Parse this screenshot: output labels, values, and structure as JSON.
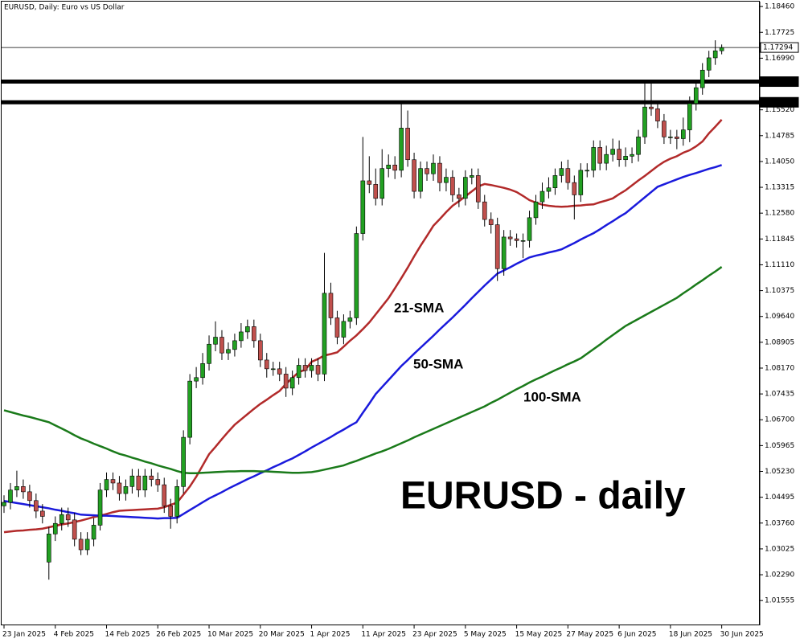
{
  "chart_data": {
    "type": "candlestick",
    "title": "EURUSD, Daily:  Euro vs US Dollar",
    "annotation": "EURUSD - daily",
    "up_color": "#22a022",
    "down_color": "#c0504d",
    "categories": [
      "23 Jan 2025",
      null,
      null,
      null,
      null,
      null,
      null,
      null,
      "4 Feb 2025",
      null,
      null,
      null,
      null,
      null,
      null,
      null,
      "14 Feb 2025",
      null,
      null,
      null,
      null,
      null,
      null,
      null,
      "26 Feb 2025",
      null,
      null,
      null,
      null,
      null,
      null,
      null,
      "10 Mar 2025",
      null,
      null,
      null,
      null,
      null,
      null,
      null,
      "20 Mar 2025",
      null,
      null,
      null,
      null,
      null,
      null,
      null,
      "1 Apr 2025",
      null,
      null,
      null,
      null,
      null,
      null,
      null,
      "11 Apr 2025",
      null,
      null,
      null,
      null,
      null,
      null,
      null,
      "23 Apr 2025",
      null,
      null,
      null,
      null,
      null,
      null,
      null,
      "5 May 2025",
      null,
      null,
      null,
      null,
      null,
      null,
      null,
      "15 May 2025",
      null,
      null,
      null,
      null,
      null,
      null,
      null,
      "27 May 2025",
      null,
      null,
      null,
      null,
      null,
      null,
      null,
      "6 Jun 2025",
      null,
      null,
      null,
      null,
      null,
      null,
      null,
      "18 Jun 2025",
      null,
      null,
      null,
      null,
      null,
      null,
      null,
      "30 Jun 2025"
    ],
    "open": [
      1.0425,
      1.0435,
      1.047,
      1.048,
      1.0465,
      1.044,
      1.041,
      1.0265,
      1.0345,
      1.0375,
      1.04,
      1.0385,
      1.033,
      1.03,
      1.033,
      1.037,
      1.047,
      1.05,
      1.049,
      1.046,
      1.048,
      1.051,
      1.047,
      1.051,
      1.05,
      1.0485,
      1.0425,
      1.0395,
      1.048,
      1.062,
      1.078,
      1.079,
      1.083,
      1.0885,
      1.0905,
      1.086,
      1.087,
      1.0895,
      1.092,
      1.0935,
      1.0895,
      1.084,
      1.0815,
      1.0815,
      1.08,
      1.076,
      1.079,
      1.0825,
      1.081,
      1.0825,
      1.08,
      1.103,
      1.096,
      1.0905,
      1.095,
      1.096,
      1.12,
      1.135,
      1.134,
      1.13,
      1.1385,
      1.1395,
      1.138,
      1.15,
      1.141,
      1.132,
      1.1385,
      1.137,
      1.14,
      1.1345,
      1.136,
      1.131,
      1.13,
      1.136,
      1.1365,
      1.129,
      1.124,
      1.1225,
      1.11,
      1.119,
      1.1185,
      1.118,
      1.118,
      1.1245,
      1.129,
      1.132,
      1.133,
      1.1365,
      1.1385,
      1.1345,
      1.131,
      1.138,
      1.138,
      1.1445,
      1.14,
      1.1425,
      1.144,
      1.141,
      1.142,
      1.1425,
      1.1475,
      1.156,
      1.1555,
      1.152,
      1.1475,
      1.1475,
      1.147,
      1.1495,
      1.157,
      1.1615,
      1.1665,
      1.17,
      1.172
    ],
    "high": [
      1.0455,
      1.049,
      1.0525,
      1.05,
      1.0485,
      1.046,
      1.043,
      1.0365,
      1.0395,
      1.042,
      1.042,
      1.0405,
      1.035,
      1.035,
      1.039,
      1.049,
      1.052,
      1.052,
      1.051,
      1.05,
      1.053,
      1.053,
      1.053,
      1.053,
      1.052,
      1.0505,
      1.0445,
      1.05,
      1.064,
      1.08,
      1.082,
      1.086,
      1.091,
      1.095,
      1.0925,
      1.089,
      1.0915,
      1.0945,
      1.0955,
      1.0955,
      1.0915,
      1.086,
      1.0835,
      1.0835,
      1.082,
      1.081,
      1.0845,
      1.0845,
      1.0845,
      1.0845,
      1.1145,
      1.106,
      1.098,
      1.097,
      1.098,
      1.122,
      1.1475,
      1.142,
      1.1385,
      1.144,
      1.1425,
      1.142,
      1.1573,
      1.155,
      1.143,
      1.1405,
      1.1405,
      1.1425,
      1.142,
      1.1385,
      1.138,
      1.133,
      1.138,
      1.1385,
      1.1385,
      1.131,
      1.126,
      1.1245,
      1.121,
      1.121,
      1.12,
      1.12,
      1.1265,
      1.131,
      1.1345,
      1.136,
      1.1385,
      1.1405,
      1.141,
      1.1365,
      1.14,
      1.14,
      1.1465,
      1.1465,
      1.145,
      1.147,
      1.1465,
      1.1445,
      1.1445,
      1.1495,
      1.1635,
      1.163,
      1.1575,
      1.154,
      1.1495,
      1.1495,
      1.153,
      1.159,
      1.1635,
      1.1685,
      1.172,
      1.175,
      1.1738
    ],
    "low": [
      1.0405,
      1.0415,
      1.045,
      1.0445,
      1.042,
      1.039,
      1.0375,
      1.0215,
      1.0325,
      1.0355,
      1.0365,
      1.031,
      1.0285,
      1.0285,
      1.031,
      1.0355,
      1.045,
      1.047,
      1.044,
      1.044,
      1.046,
      1.045,
      1.045,
      1.048,
      1.0465,
      1.0405,
      1.036,
      1.0375,
      1.046,
      1.06,
      1.076,
      1.077,
      1.081,
      1.0865,
      1.084,
      1.084,
      1.085,
      1.0875,
      1.09,
      1.0875,
      1.082,
      1.079,
      1.0795,
      1.078,
      1.0735,
      1.074,
      1.077,
      1.079,
      1.079,
      1.078,
      1.078,
      1.094,
      1.0885,
      1.0885,
      1.093,
      1.094,
      1.118,
      1.1315,
      1.128,
      1.128,
      1.136,
      1.1355,
      1.136,
      1.139,
      1.13,
      1.13,
      1.135,
      1.135,
      1.132,
      1.132,
      1.129,
      1.1275,
      1.128,
      1.134,
      1.127,
      1.122,
      1.12,
      1.1065,
      1.108,
      1.1165,
      1.116,
      1.113,
      1.116,
      1.1225,
      1.127,
      1.13,
      1.131,
      1.1345,
      1.1325,
      1.124,
      1.129,
      1.136,
      1.136,
      1.138,
      1.138,
      1.1405,
      1.139,
      1.139,
      1.14,
      1.1405,
      1.1455,
      1.1535,
      1.15,
      1.1455,
      1.1455,
      1.144,
      1.145,
      1.146,
      1.155,
      1.1595,
      1.1645,
      1.168,
      1.171
    ],
    "close": [
      1.0435,
      1.047,
      1.048,
      1.0465,
      1.044,
      1.041,
      1.0395,
      1.0345,
      1.0375,
      1.04,
      1.0385,
      1.033,
      1.03,
      1.033,
      1.037,
      1.047,
      1.05,
      1.049,
      1.046,
      1.048,
      1.051,
      1.047,
      1.051,
      1.05,
      1.0485,
      1.0425,
      1.0395,
      1.048,
      1.062,
      1.078,
      1.079,
      1.083,
      1.0885,
      1.0905,
      1.086,
      1.087,
      1.0895,
      1.092,
      1.0935,
      1.0895,
      1.084,
      1.0815,
      1.0815,
      1.08,
      1.076,
      1.079,
      1.0825,
      1.081,
      1.0825,
      1.08,
      1.103,
      1.096,
      1.0905,
      1.095,
      1.096,
      1.12,
      1.135,
      1.134,
      1.13,
      1.1385,
      1.1395,
      1.138,
      1.15,
      1.141,
      1.132,
      1.1385,
      1.137,
      1.14,
      1.1345,
      1.136,
      1.131,
      1.13,
      1.136,
      1.1365,
      1.129,
      1.124,
      1.1225,
      1.11,
      1.119,
      1.1185,
      1.118,
      1.118,
      1.1245,
      1.129,
      1.132,
      1.133,
      1.1365,
      1.1385,
      1.1345,
      1.131,
      1.138,
      1.138,
      1.1445,
      1.14,
      1.1425,
      1.144,
      1.141,
      1.142,
      1.1425,
      1.1475,
      1.156,
      1.1555,
      1.152,
      1.1475,
      1.1475,
      1.147,
      1.1495,
      1.157,
      1.1615,
      1.1665,
      1.17,
      1.172,
      1.1729
    ],
    "series": [
      {
        "name": "21-SMA",
        "color": "#b22a2a",
        "values": [
          1.035,
          1.0352,
          1.0354,
          1.0355,
          1.0357,
          1.0358,
          1.036,
          1.0364,
          1.0368,
          1.0372,
          1.0375,
          1.0379,
          1.0383,
          1.0388,
          1.0393,
          1.0397,
          1.0402,
          1.0407,
          1.0411,
          1.0412,
          1.0413,
          1.0414,
          1.0415,
          1.0416,
          1.0417,
          1.0421,
          1.0428,
          1.0434,
          1.0457,
          1.048,
          1.0508,
          1.054,
          1.0572,
          1.0593,
          1.0615,
          1.0636,
          1.0656,
          1.0671,
          1.0686,
          1.0701,
          1.0715,
          1.0727,
          1.074,
          1.0752,
          1.0772,
          1.0789,
          1.0806,
          1.0812,
          1.0835,
          1.0843,
          1.0853,
          1.0857,
          1.0862,
          1.0878,
          1.0895,
          1.091,
          1.0928,
          1.0947,
          1.097,
          1.0993,
          1.1016,
          1.1044,
          1.1073,
          1.1103,
          1.1135,
          1.1165,
          1.1193,
          1.1222,
          1.1241,
          1.1261,
          1.1279,
          1.1292,
          1.1306,
          1.132,
          1.1334,
          1.1341,
          1.1338,
          1.1334,
          1.133,
          1.1325,
          1.1318,
          1.1307,
          1.1295,
          1.1288,
          1.1282,
          1.1279,
          1.1277,
          1.1276,
          1.1277,
          1.1279,
          1.128,
          1.1282,
          1.1283,
          1.1289,
          1.1294,
          1.13,
          1.1312,
          1.1323,
          1.1337,
          1.1351,
          1.1364,
          1.1378,
          1.1392,
          1.1404,
          1.1413,
          1.142,
          1.143,
          1.1437,
          1.1448,
          1.1462,
          1.1485,
          1.1504,
          1.1524
        ]
      },
      {
        "name": "50-SMA",
        "color": "#1a1adc",
        "values": [
          1.0439,
          1.0436,
          1.0433,
          1.043,
          1.0427,
          1.0424,
          1.0421,
          1.0418,
          1.0414,
          1.0411,
          1.0407,
          1.0404,
          1.04,
          1.0399,
          1.0398,
          1.0397,
          1.0397,
          1.0396,
          1.0395,
          1.0394,
          1.0393,
          1.0392,
          1.0391,
          1.039,
          1.0389,
          1.039,
          1.039,
          1.0391,
          1.0402,
          1.0413,
          1.0424,
          1.0435,
          1.0446,
          1.0455,
          1.0464,
          1.0474,
          1.0483,
          1.0492,
          1.0501,
          1.0509,
          1.0518,
          1.0526,
          1.0535,
          1.0543,
          1.0552,
          1.056,
          1.057,
          1.058,
          1.0591,
          1.0601,
          1.0611,
          1.0621,
          1.0632,
          1.0642,
          1.0653,
          1.0663,
          1.069,
          1.0716,
          1.0743,
          1.0763,
          1.0783,
          1.0803,
          1.0823,
          1.084,
          1.0858,
          1.0875,
          1.0892,
          1.0909,
          1.0927,
          1.0944,
          1.0961,
          1.0979,
          1.0997,
          1.1016,
          1.1034,
          1.1052,
          1.1069,
          1.1086,
          1.1095,
          1.1104,
          1.1114,
          1.1123,
          1.1132,
          1.1137,
          1.1141,
          1.1146,
          1.115,
          1.1155,
          1.1164,
          1.1173,
          1.1183,
          1.1192,
          1.1201,
          1.1212,
          1.1224,
          1.1235,
          1.1247,
          1.1258,
          1.1273,
          1.1288,
          1.1303,
          1.1318,
          1.1333,
          1.134,
          1.1347,
          1.1354,
          1.1361,
          1.1367,
          1.1372,
          1.1378,
          1.1384,
          1.1389,
          1.1395
        ]
      },
      {
        "name": "100-SMA",
        "color": "#1a7a1a",
        "values": [
          1.0697,
          1.0692,
          1.0687,
          1.0682,
          1.0678,
          1.0673,
          1.0668,
          1.0663,
          1.0654,
          1.0645,
          1.0636,
          1.0626,
          1.0617,
          1.061,
          1.0602,
          1.0595,
          1.0588,
          1.058,
          1.0573,
          1.0568,
          1.0562,
          1.0557,
          1.0551,
          1.0546,
          1.054,
          1.0535,
          1.053,
          1.0524,
          1.0519,
          1.0518,
          1.0518,
          1.0519,
          1.052,
          1.0521,
          1.0522,
          1.0523,
          1.0523,
          1.0524,
          1.0524,
          1.0524,
          1.0523,
          1.0523,
          1.0522,
          1.0521,
          1.052,
          1.0519,
          1.0519,
          1.052,
          1.0521,
          1.0524,
          1.0528,
          1.0532,
          1.0536,
          1.054,
          1.0547,
          1.0553,
          1.056,
          1.0567,
          1.0574,
          1.058,
          1.0587,
          1.0595,
          1.0603,
          1.0611,
          1.062,
          1.0628,
          1.0636,
          1.0644,
          1.0652,
          1.066,
          1.0668,
          1.0676,
          1.0684,
          1.0692,
          1.07,
          1.0708,
          1.0718,
          1.0727,
          1.0737,
          1.0747,
          1.0757,
          1.0766,
          1.0776,
          1.0785,
          1.0793,
          1.0802,
          1.0811,
          1.0819,
          1.0828,
          1.0836,
          1.0845,
          1.0858,
          1.0871,
          1.0884,
          1.0898,
          1.0911,
          1.0924,
          1.0937,
          1.0947,
          1.0957,
          1.0967,
          1.0977,
          1.0987,
          1.0997,
          1.1007,
          1.1017,
          1.103,
          1.1042,
          1.1055,
          1.1067,
          1.108,
          1.1092,
          1.1105
        ]
      }
    ],
    "levels": [
      1.16323,
      1.15735
    ],
    "last_price": 1.17294,
    "ylim": [
      1.0085,
      1.186
    ],
    "yticks": [
      {
        "value": 1.1846,
        "label": "1.18460"
      },
      1.17725,
      {
        "value": 1.1699,
        "label": "1.16990"
      },
      {
        "value": 1.1552,
        "label": "1.15520"
      },
      1.14785,
      {
        "value": 1.1405,
        "label": "1.14050"
      },
      1.13315,
      {
        "value": 1.1258,
        "label": "1.12580"
      },
      1.11845,
      {
        "value": 1.1111,
        "label": "1.11110"
      },
      1.10375,
      {
        "value": 1.0964,
        "label": "1.09640"
      },
      1.08905,
      {
        "value": 1.0817,
        "label": "1.08170"
      },
      1.07435,
      {
        "value": 1.067,
        "label": "1.06700"
      },
      1.05965,
      {
        "value": 1.0523,
        "label": "1.05230"
      },
      1.04495,
      {
        "value": 1.0376,
        "label": "1.03760"
      },
      1.03025,
      {
        "value": 1.0229,
        "label": "1.02290"
      },
      1.01555
    ],
    "grid": false
  }
}
